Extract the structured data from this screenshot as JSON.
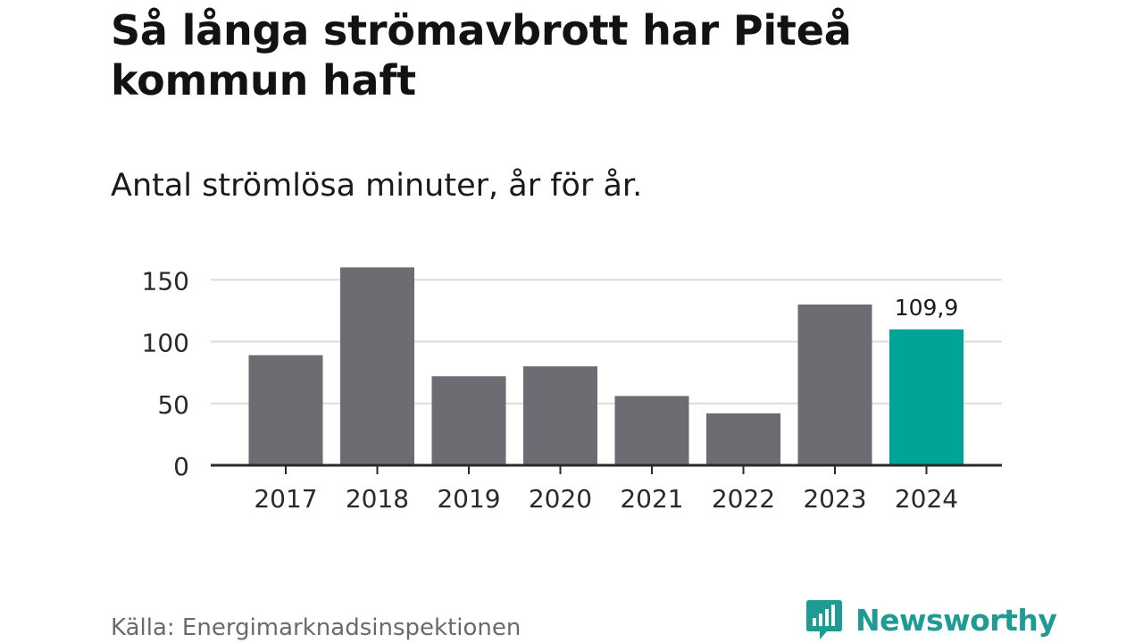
{
  "title": "Så långa strömavbrott har Piteå kommun haft",
  "subtitle": "Antal strömlösa minuter, år för år.",
  "source": "Källa: Energimarknadsinspektionen",
  "brand": {
    "name": "Newsworthy",
    "icon": "newsworthy-logo-icon",
    "color": "#1e9b93"
  },
  "colors": {
    "bar": "#6d6c72",
    "highlight": "#00a398",
    "grid": "#dcdcdc",
    "axis": "#2a2a2a"
  },
  "chart_data": {
    "type": "bar",
    "title": "Så långa strömavbrott har Piteå kommun haft",
    "subtitle": "Antal strömlösa minuter, år för år.",
    "xlabel": "",
    "ylabel": "",
    "categories": [
      "2017",
      "2018",
      "2019",
      "2020",
      "2021",
      "2022",
      "2023",
      "2024"
    ],
    "values": [
      89,
      160,
      72,
      80,
      56,
      42,
      130,
      109.9
    ],
    "highlight_index": 7,
    "data_labels": [
      {
        "index": 7,
        "text": "109,9"
      }
    ],
    "yticks": [
      0,
      50,
      100,
      150
    ],
    "ytick_labels": [
      "0",
      "50",
      "100",
      "150"
    ],
    "ylim": [
      0,
      160
    ],
    "grid": true,
    "legend": "none"
  }
}
